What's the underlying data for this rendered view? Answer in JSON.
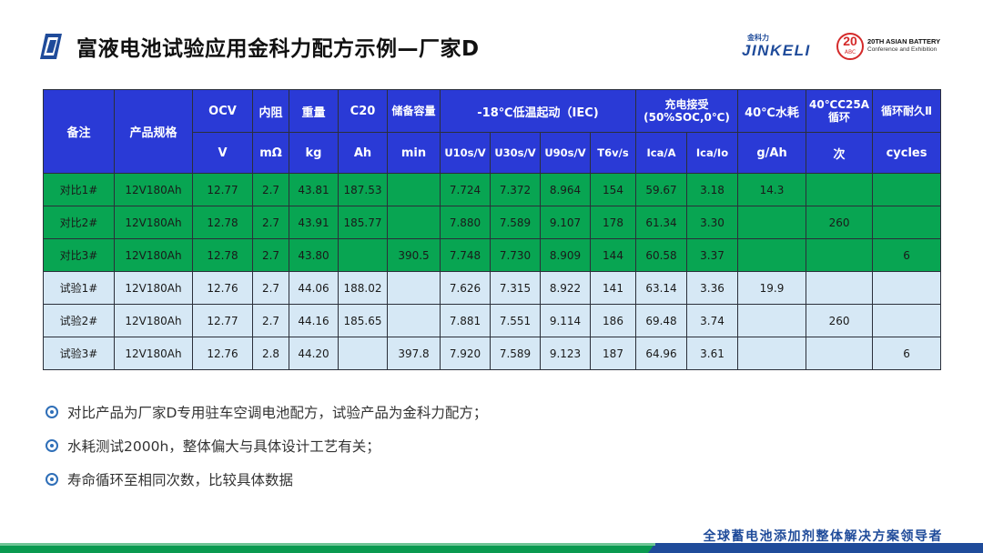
{
  "header": {
    "title": "富液电池试验应用金科力配方示例—厂家D",
    "logo_small": "金科力",
    "logo_main": "JINKELI",
    "badge_number": "20",
    "badge_sub": "ABC",
    "event_line1": "20TH ASIAN BATTERY",
    "event_line2": "Conference and Exhibition"
  },
  "table": {
    "head": {
      "beizhu": "备注",
      "spec": "产品规格",
      "ocv": "OCV",
      "neizu": "内阻",
      "weight": "重量",
      "c20": "C20",
      "reserve": "储备容量",
      "cold_start": "-18℃低温起动（IEC)",
      "charge_accept": "充电接受(50%SOC,0℃)",
      "water_loss": "40℃水耗",
      "cycle_25a": "40℃C25A循环",
      "cycle_life": "循环耐久Ⅱ",
      "units": [
        "V",
        "mΩ",
        "kg",
        "Ah",
        "min",
        "U10s/V",
        "U30s/V",
        "U90s/V",
        "T6v/s",
        "Ica/A",
        "Ica/Io",
        "g/Ah",
        "次",
        "cycles"
      ]
    },
    "rows": [
      {
        "style": "green",
        "cells": [
          "对比1#",
          "12V180Ah",
          "12.77",
          "2.7",
          "43.81",
          "187.53",
          "",
          "7.724",
          "7.372",
          "8.964",
          "154",
          "59.67",
          "3.18",
          "14.3",
          "",
          ""
        ]
      },
      {
        "style": "green",
        "cells": [
          "对比2#",
          "12V180Ah",
          "12.78",
          "2.7",
          "43.91",
          "185.77",
          "",
          "7.880",
          "7.589",
          "9.107",
          "178",
          "61.34",
          "3.30",
          "",
          "260",
          ""
        ]
      },
      {
        "style": "green",
        "cells": [
          "对比3#",
          "12V180Ah",
          "12.78",
          "2.7",
          "43.80",
          "",
          "390.5",
          "7.748",
          "7.730",
          "8.909",
          "144",
          "60.58",
          "3.37",
          "",
          "",
          "6"
        ]
      },
      {
        "style": "light",
        "cells": [
          "试验1#",
          "12V180Ah",
          "12.76",
          "2.7",
          "44.06",
          "188.02",
          "",
          "7.626",
          "7.315",
          "8.922",
          "141",
          "63.14",
          "3.36",
          "19.9",
          "",
          ""
        ]
      },
      {
        "style": "light",
        "cells": [
          "试验2#",
          "12V180Ah",
          "12.77",
          "2.7",
          "44.16",
          "185.65",
          "",
          "7.881",
          "7.551",
          "9.114",
          "186",
          "69.48",
          "3.74",
          "",
          "260",
          ""
        ]
      },
      {
        "style": "light",
        "cells": [
          "试验3#",
          "12V180Ah",
          "12.76",
          "2.8",
          "44.20",
          "",
          "397.8",
          "7.920",
          "7.589",
          "9.123",
          "187",
          "64.96",
          "3.61",
          "",
          "",
          "6"
        ]
      }
    ]
  },
  "bullets": [
    "对比产品为厂家D专用驻车空调电池配方，试验产品为金科力配方；",
    "水耗测试2000h，整体偏大与具体设计工艺有关；",
    "寿命循环至相同次数，比较具体数据"
  ],
  "footer": {
    "slogan": "全球蓄电池添加剂整体解决方案领导者"
  },
  "colors": {
    "header_blue": "#2a3ad6",
    "row_green": "#08a552",
    "row_light": "#d6e8f5",
    "brand_blue": "#1f4b9a"
  }
}
